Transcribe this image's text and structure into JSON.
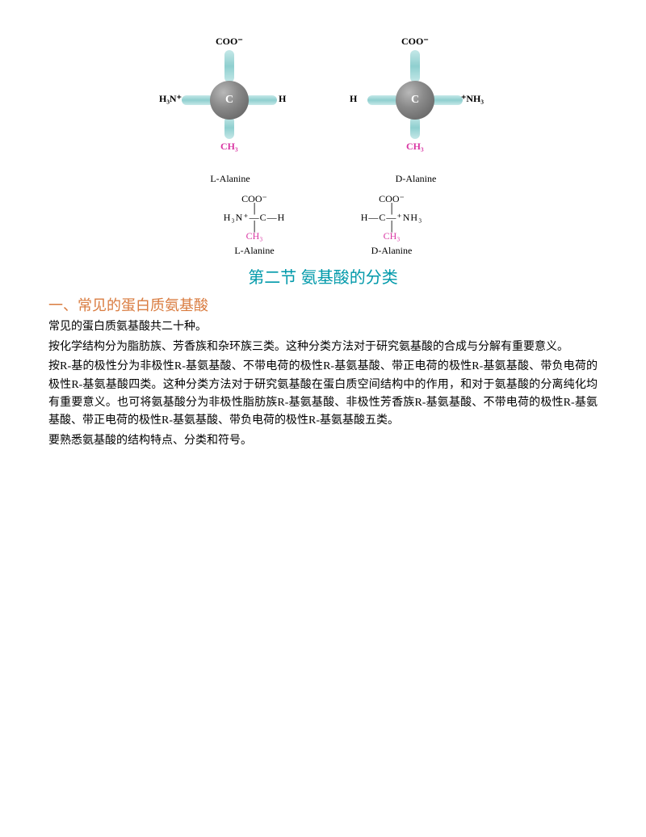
{
  "diagram": {
    "carbon_label": "C",
    "left_model": {
      "top": "COO⁻",
      "left": "H₃N⁺",
      "right": "H",
      "bottom": "CH₃",
      "name": "L-Alanine"
    },
    "right_model": {
      "top": "COO⁻",
      "left": "H",
      "right": "⁺NH₃",
      "bottom": "CH₃",
      "name": "D-Alanine"
    },
    "left_fischer": {
      "top": "COO⁻",
      "mid": "H₃N⁺—C—H",
      "bottom": "CH₃",
      "name": "L-Alanine"
    },
    "right_fischer": {
      "top": "COO⁻",
      "mid": "H—C—⁺NH₃",
      "bottom": "CH₃",
      "name": "D-Alanine"
    },
    "colors": {
      "carbon_fill": "#8a8a8a",
      "bond_fill": "#a8dcdc",
      "ch3_color": "#d936a3"
    }
  },
  "section_title": "第二节  氨基酸的分类",
  "subheading": "一、常见的蛋白质氨基酸",
  "paragraphs": [
    "常见的蛋白质氨基酸共二十种。",
    "按化学结构分为脂肪族、芳香族和杂环族三类。这种分类方法对于研究氨基酸的合成与分解有重要意义。",
    "按R-基的极性分为非极性R-基氨基酸、不带电荷的极性R-基氨基酸、带正电荷的极性R-基氨基酸、带负电荷的极性R-基氨基酸四类。这种分类方法对于研究氨基酸在蛋白质空间结构中的作用，和对于氨基酸的分离纯化均有重要意义。也可将氨基酸分为非极性脂肪族R-基氨基酸、非极性芳香族R-基氨基酸、不带电荷的极性R-基氨基酸、带正电荷的极性R-基氨基酸、带负电荷的极性R-基氨基酸五类。",
    "要熟悉氨基酸的结构特点、分类和符号。"
  ]
}
